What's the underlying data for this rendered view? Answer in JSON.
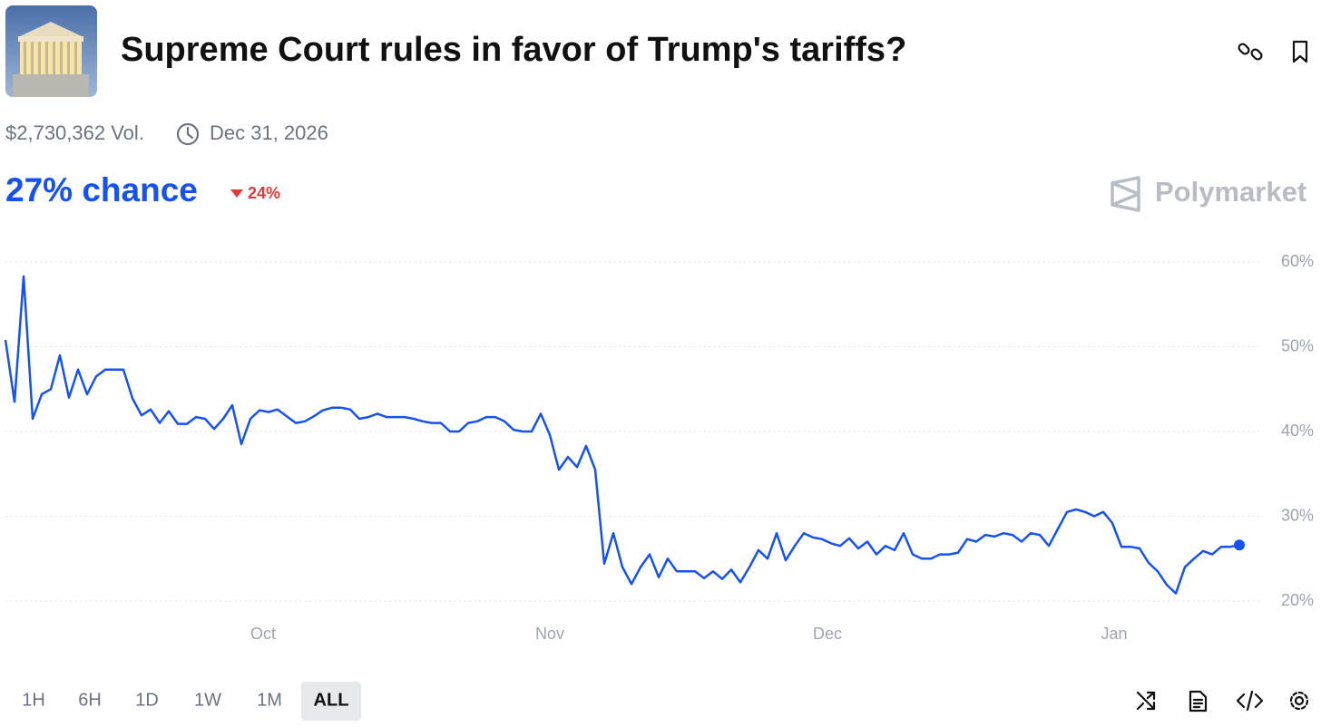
{
  "header": {
    "title": "Supreme Court rules in favor of Trump's tariffs?",
    "volume": "$2,730,362 Vol.",
    "end_date": "Dec 31, 2026",
    "chance": "27% chance",
    "change": "24%",
    "brand": "Polymarket"
  },
  "chart_data": {
    "type": "line",
    "color": "#1652f0",
    "grid": true,
    "values": [
      50.8,
      43.5,
      58.3,
      41.5,
      44.4,
      45,
      49,
      44,
      47.3,
      44.4,
      46.5,
      47.3,
      47.3,
      47.3,
      43.9,
      41.9,
      42.6,
      41,
      42.4,
      40.9,
      40.9,
      41.7,
      41.5,
      40.3,
      41.5,
      43.1,
      38.5,
      41.5,
      42.5,
      42.3,
      42.6,
      41.8,
      41,
      41.2,
      41.8,
      42.5,
      42.8,
      42.8,
      42.6,
      41.5,
      41.7,
      42.1,
      41.7,
      41.7,
      41.7,
      41.5,
      41.2,
      41,
      41,
      40,
      40,
      41,
      41.2,
      41.7,
      41.7,
      41.2,
      40.2,
      40,
      40,
      42.1,
      39.6,
      35.5,
      37,
      35.8,
      38.3,
      35.5,
      24.4,
      28,
      24,
      22,
      24,
      25.5,
      22.8,
      25,
      23.5,
      23.5,
      23.5,
      22.7,
      23.5,
      22.6,
      23.7,
      22.2,
      24,
      26,
      25,
      28,
      24.8,
      26.5,
      28,
      27.5,
      27.3,
      26.8,
      26.5,
      27.4,
      26.2,
      27,
      25.5,
      26.5,
      26,
      28,
      25.5,
      25,
      25,
      25.5,
      25.5,
      25.7,
      27.3,
      27,
      27.8,
      27.6,
      28,
      27.8,
      27,
      28,
      27.8,
      26.5,
      28.5,
      30.5,
      30.8,
      30.5,
      30,
      30.5,
      29.2,
      26.4,
      26.4,
      26.2,
      24.5,
      23.5,
      21.9,
      20.9,
      24,
      25,
      25.9,
      25.5,
      26.4,
      26.4,
      26.6
    ],
    "xlim": [
      0,
      136
    ],
    "xticks": [
      {
        "value": 28.4,
        "label": "Oct"
      },
      {
        "value": 60,
        "label": "Nov"
      },
      {
        "value": 90.6,
        "label": "Dec"
      },
      {
        "value": 122.2,
        "label": "Jan"
      }
    ],
    "ylim": [
      20,
      60
    ],
    "yticks": [
      {
        "value": 60,
        "label": "60%"
      },
      {
        "value": 50,
        "label": "50%"
      },
      {
        "value": 40,
        "label": "40%"
      },
      {
        "value": 30,
        "label": "30%"
      },
      {
        "value": 20,
        "label": "20%"
      }
    ]
  },
  "range_buttons": [
    "1H",
    "6H",
    "1D",
    "1W",
    "1M",
    "ALL"
  ],
  "selected_range": 5
}
